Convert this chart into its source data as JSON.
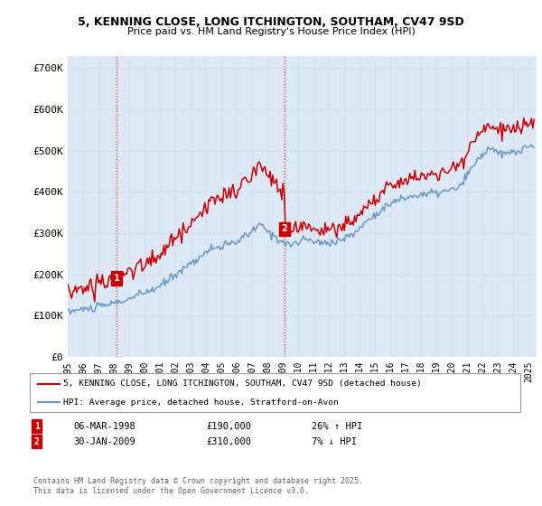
{
  "title_line1": "5, KENNING CLOSE, LONG ITCHINGTON, SOUTHAM, CV47 9SD",
  "title_line2": "Price paid vs. HM Land Registry's House Price Index (HPI)",
  "ylabel_ticks": [
    "£0",
    "£100K",
    "£200K",
    "£300K",
    "£400K",
    "£500K",
    "£600K",
    "£700K"
  ],
  "ytick_vals": [
    0,
    100000,
    200000,
    300000,
    400000,
    500000,
    600000,
    700000
  ],
  "ylim": [
    0,
    730000
  ],
  "sale1_date": "06-MAR-1998",
  "sale1_price": 190000,
  "sale1_label": "26% ↑ HPI",
  "sale2_date": "30-JAN-2009",
  "sale2_price": 310000,
  "sale2_label": "7% ↓ HPI",
  "legend_property": "5, KENNING CLOSE, LONG ITCHINGTON, SOUTHAM, CV47 9SD (detached house)",
  "legend_hpi": "HPI: Average price, detached house, Stratford-on-Avon",
  "footer": "Contains HM Land Registry data © Crown copyright and database right 2025.\nThis data is licensed under the Open Government Licence v3.0.",
  "property_color": "#cc0000",
  "hpi_color": "#6699cc",
  "grid_color": "#dddddd",
  "background_color": "#dce8f5",
  "annotation_box_color": "#cc0000",
  "hpi_anchors_x": [
    1995.0,
    1996.0,
    1997.0,
    1998.0,
    1999.0,
    2000.0,
    2001.0,
    2002.0,
    2003.5,
    2004.5,
    2005.5,
    2006.5,
    2007.5,
    2008.5,
    2009.5,
    2010.5,
    2011.5,
    2012.5,
    2013.5,
    2014.5,
    2015.5,
    2016.5,
    2017.5,
    2018.5,
    2019.5,
    2020.5,
    2021.5,
    2022.5,
    2023.0,
    2024.0,
    2025.5
  ],
  "hpi_anchors_y": [
    110000,
    115000,
    120000,
    130000,
    140000,
    155000,
    170000,
    200000,
    240000,
    265000,
    270000,
    290000,
    320000,
    290000,
    270000,
    285000,
    275000,
    280000,
    295000,
    330000,
    360000,
    380000,
    390000,
    395000,
    400000,
    410000,
    470000,
    510000,
    490000,
    495000,
    515000
  ]
}
